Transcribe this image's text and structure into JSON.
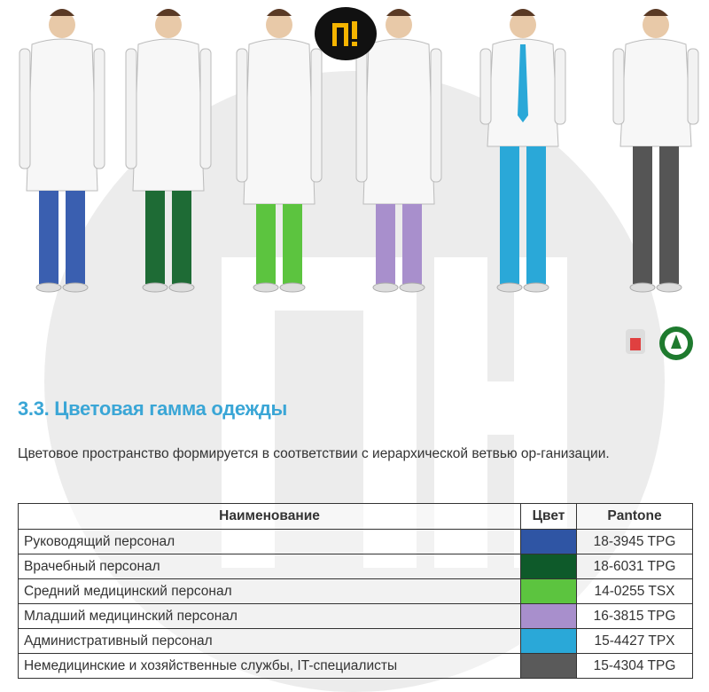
{
  "logo": {
    "text": "П!",
    "colors": {
      "background": "#111111",
      "mark": "#f5b400"
    }
  },
  "watermark": {
    "text": "ПН"
  },
  "figures": [
    {
      "role": "head staff",
      "pants_color": "#3a5fb0"
    },
    {
      "role": "doctor",
      "pants_color": "#1e6b35"
    },
    {
      "role": "mid-level medical",
      "pants_color": "#5cc43f"
    },
    {
      "role": "junior medical",
      "pants_color": "#a88fcc"
    },
    {
      "role": "administrative",
      "pants_color": "#2aa8d8"
    },
    {
      "role": "non-medical",
      "pants_color": "#555555"
    }
  ],
  "section": {
    "title": "3.3. Цветовая гамма одежды",
    "description": "Цветовое пространство формируется в соответствии с иерархической ветвью ор-ганизации.",
    "title_color": "#3aa6d6"
  },
  "table": {
    "headers": [
      "Наименование",
      "Цвет",
      "Pantone"
    ],
    "rows": [
      {
        "name": "Руководящий персонал",
        "color": "#2f55a4",
        "pantone": "18-3945 TPG"
      },
      {
        "name": "Врачебный персонал",
        "color": "#0e5a2a",
        "pantone": "18-6031 TPG"
      },
      {
        "name": "Средний медицинский персонал",
        "color": "#5cc43f",
        "pantone": "14-0255 TSX"
      },
      {
        "name": "Младший медицинский персонал",
        "color": "#a88fcc",
        "pantone": "16-3815 TPG"
      },
      {
        "name": "Административный персонал",
        "color": "#2aa8d8",
        "pantone": "15-4427 TPX"
      },
      {
        "name": "Немедицинские и хозяйственные службы, IT-специалисты",
        "color": "#5a5a5a",
        "pantone": "15-4304 TPG"
      }
    ]
  }
}
